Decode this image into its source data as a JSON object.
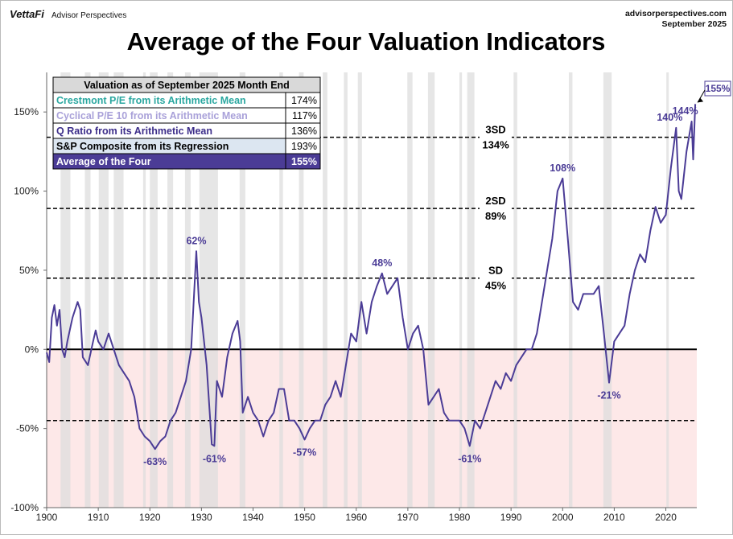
{
  "header": {
    "brand": "VettaFi",
    "sub_brand": "Advisor Perspectives",
    "site": "advisorperspectives.com",
    "date": "September 2025"
  },
  "chart_data": {
    "type": "line",
    "title": "Average of the Four Valuation Indicators",
    "xlim": [
      1900,
      2026
    ],
    "xticks": [
      1900,
      1910,
      1920,
      1930,
      1940,
      1950,
      1960,
      1970,
      1980,
      1990,
      2000,
      2010,
      2020
    ],
    "ylim": [
      -100,
      175
    ],
    "yticks": [
      {
        "value": -100,
        "label": "-100%"
      },
      {
        "value": -50,
        "label": "-50%"
      },
      {
        "value": 0,
        "label": "0%"
      },
      {
        "value": 50,
        "label": "50%"
      },
      {
        "value": 100,
        "label": "100%"
      },
      {
        "value": 150,
        "label": "150%"
      }
    ],
    "series": [
      {
        "name": "Average of the Four",
        "color": "#4b3c96",
        "x": [
          1900,
          1900.5,
          1901,
          1901.5,
          1902,
          1902.5,
          1903,
          1903.5,
          1904,
          1905,
          1906,
          1906.5,
          1907,
          1908,
          1909,
          1909.5,
          1910,
          1911,
          1912,
          1913,
          1914,
          1915,
          1916,
          1917,
          1918,
          1919,
          1920,
          1921,
          1922,
          1923,
          1924,
          1925,
          1926,
          1927,
          1928,
          1929,
          1929.5,
          1930,
          1931,
          1932,
          1932.5,
          1933,
          1934,
          1935,
          1936,
          1937,
          1937.5,
          1938,
          1939,
          1940,
          1941,
          1942,
          1943,
          1944,
          1945,
          1946,
          1947,
          1948,
          1949,
          1950,
          1951,
          1952,
          1953,
          1954,
          1955,
          1956,
          1957,
          1958,
          1959,
          1960,
          1961,
          1962,
          1963,
          1964,
          1965,
          1966,
          1967,
          1968,
          1969,
          1970,
          1971,
          1972,
          1973,
          1974,
          1975,
          1976,
          1977,
          1978,
          1979,
          1980,
          1981,
          1982,
          1983,
          1984,
          1985,
          1986,
          1987,
          1988,
          1989,
          1990,
          1991,
          1992,
          1993,
          1994,
          1995,
          1996,
          1997,
          1998,
          1999,
          2000,
          2001,
          2002,
          2003,
          2004,
          2005,
          2006,
          2007,
          2008,
          2009,
          2010,
          2011,
          2012,
          2013,
          2014,
          2015,
          2016,
          2017,
          2018,
          2019,
          2020,
          2021,
          2022,
          2022.5,
          2023,
          2024,
          2025,
          2025.3,
          2025.7
        ],
        "values": [
          -2,
          -8,
          20,
          28,
          15,
          25,
          0,
          -5,
          5,
          20,
          30,
          25,
          -5,
          -10,
          5,
          12,
          5,
          0,
          10,
          0,
          -10,
          -15,
          -20,
          -30,
          -50,
          -55,
          -58,
          -63,
          -58,
          -55,
          -45,
          -40,
          -30,
          -20,
          0,
          62,
          30,
          20,
          -10,
          -60,
          -61,
          -20,
          -30,
          -5,
          10,
          18,
          5,
          -40,
          -30,
          -40,
          -45,
          -55,
          -45,
          -40,
          -25,
          -25,
          -45,
          -45,
          -50,
          -57,
          -50,
          -45,
          -45,
          -35,
          -30,
          -20,
          -30,
          -10,
          10,
          5,
          30,
          10,
          30,
          40,
          48,
          35,
          40,
          45,
          20,
          0,
          10,
          15,
          0,
          -35,
          -30,
          -25,
          -40,
          -45,
          -45,
          -45,
          -50,
          -61,
          -45,
          -50,
          -40,
          -30,
          -20,
          -25,
          -15,
          -20,
          -10,
          -5,
          0,
          0,
          10,
          30,
          50,
          70,
          100,
          108,
          70,
          30,
          25,
          35,
          35,
          35,
          40,
          10,
          -21,
          5,
          10,
          15,
          35,
          50,
          60,
          55,
          75,
          90,
          80,
          85,
          115,
          140,
          100,
          95,
          125,
          144,
          120,
          155
        ]
      }
    ],
    "levels": [
      {
        "name": "3SD",
        "value": 134,
        "label": "134%"
      },
      {
        "name": "2SD",
        "value": 89,
        "label": "89%"
      },
      {
        "name": "SD",
        "value": 45,
        "label": "45%"
      },
      {
        "value": -45
      }
    ],
    "recessions": [
      [
        1902.7,
        1904.6
      ],
      [
        1907.4,
        1908.5
      ],
      [
        1910.1,
        1912.0
      ],
      [
        1913.0,
        1914.9
      ],
      [
        1918.7,
        1919.2
      ],
      [
        1920.0,
        1921.5
      ],
      [
        1923.4,
        1924.5
      ],
      [
        1926.8,
        1927.9
      ],
      [
        1929.6,
        1933.2
      ],
      [
        1937.4,
        1938.5
      ],
      [
        1945.1,
        1945.8
      ],
      [
        1948.9,
        1949.8
      ],
      [
        1953.5,
        1954.4
      ],
      [
        1957.6,
        1958.3
      ],
      [
        1960.3,
        1961.1
      ],
      [
        1969.9,
        1970.9
      ],
      [
        1973.9,
        1975.2
      ],
      [
        1980.0,
        1980.5
      ],
      [
        1981.5,
        1982.9
      ],
      [
        1990.5,
        1991.2
      ],
      [
        2001.2,
        2001.9
      ],
      [
        2007.9,
        2009.5
      ],
      [
        2020.1,
        2020.3
      ]
    ],
    "annotations": [
      {
        "x": 1921,
        "value": -63,
        "label": "-63%"
      },
      {
        "x": 1929,
        "value": 62,
        "label": "62%"
      },
      {
        "x": 1932.5,
        "value": -61,
        "label": "-61%"
      },
      {
        "x": 1950,
        "value": -57,
        "label": "-57%"
      },
      {
        "x": 1965,
        "value": 48,
        "label": "48%"
      },
      {
        "x": 1982,
        "value": -61,
        "label": "-61%"
      },
      {
        "x": 2000,
        "value": 108,
        "label": "108%"
      },
      {
        "x": 2009,
        "value": -21,
        "label": "-21%"
      },
      {
        "x": 2022,
        "value": 140,
        "label": "140%"
      },
      {
        "x": 2025,
        "value": 144,
        "label": "144%"
      }
    ],
    "last_label": {
      "x": 2025.7,
      "value": 155,
      "label": "155%"
    },
    "table": {
      "title": "Valuation as of September 2025 Month End",
      "rows": [
        {
          "name": "Crestmont P/E from its Arithmetic Mean",
          "value": "174%",
          "color": "#2aa7a0",
          "background": "#ffffff"
        },
        {
          "name": "Cyclical P/E 10 from its Arithmetic Mean",
          "value": "117%",
          "color": "#a9a1d9",
          "background": "#ffffff"
        },
        {
          "name": "Q Ratio from its Arithmetic Mean",
          "value": "136%",
          "color": "#3d2e8a",
          "background": "#ffffff"
        },
        {
          "name": "S&P Composite from its Regression",
          "value": "193%",
          "color": "#000000",
          "background": "#dce6f1"
        },
        {
          "name": "Average of the Four",
          "value": "155%",
          "color": "#ffffff",
          "background": "#4b3c96"
        }
      ]
    }
  }
}
